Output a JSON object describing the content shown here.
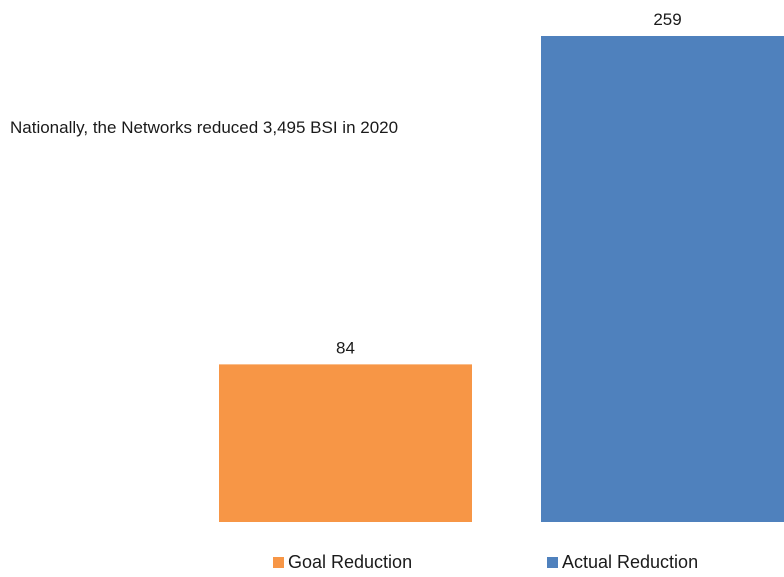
{
  "chart_data": {
    "type": "bar",
    "categories": [
      "Goal Reduction",
      "Actual Reduction"
    ],
    "values": [
      84,
      259
    ],
    "colors": [
      "#F79646",
      "#4F81BD"
    ],
    "annotation": "Nationally, the Networks reduced 3,495 BSI in 2020",
    "legend": {
      "position": "bottom",
      "items": [
        {
          "label": "Goal Reduction",
          "color": "#F79646"
        },
        {
          "label": "Actual Reduction",
          "color": "#4F81BD"
        }
      ]
    },
    "grid": false,
    "ylim": [
      0,
      259
    ]
  }
}
